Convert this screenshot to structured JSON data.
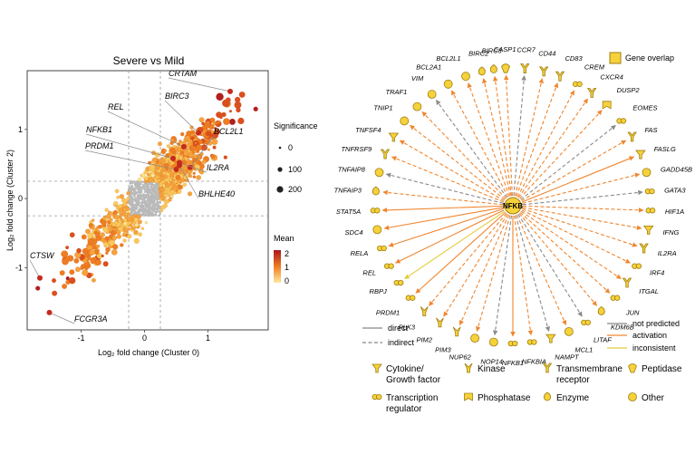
{
  "chart_data": [
    {
      "type": "scatter",
      "title": "Severe vs Mild",
      "xlabel": "Log₂ fold change (Cluster 0)",
      "ylabel": "Log₂ fold change (Cluster 2)",
      "xlim": [
        -1.85,
        1.95
      ],
      "ylim": [
        -1.9,
        1.85
      ],
      "xticks": [
        -1,
        0,
        1
      ],
      "yticks": [
        -1,
        0,
        1
      ],
      "threshold_lines_x": [
        -0.25,
        0.25
      ],
      "threshold_lines_y": [
        -0.25,
        0.25
      ],
      "grid": false,
      "size_legend": {
        "title": "Significance",
        "values": [
          0,
          100,
          200
        ]
      },
      "color_legend": {
        "title": "Mean",
        "ticks": [
          2,
          1,
          0
        ],
        "colors": [
          "#b11f1f",
          "#f08a24",
          "#ffe38a"
        ]
      },
      "labeled_points": [
        {
          "label": "CRTAM",
          "x": 1.35,
          "y": 1.55
        },
        {
          "label": "REL",
          "x": 0.62,
          "y": 0.75
        },
        {
          "label": "BIRC3",
          "x": 0.85,
          "y": 0.95
        },
        {
          "label": "NFKB1",
          "x": 0.45,
          "y": 0.58
        },
        {
          "label": "BCL2L1",
          "x": 0.72,
          "y": 0.45
        },
        {
          "label": "PRDM1",
          "x": 0.5,
          "y": 0.42
        },
        {
          "label": "IL2RA",
          "x": 0.55,
          "y": 0.52
        },
        {
          "label": "BHLHE40",
          "x": 0.55,
          "y": 0.48
        },
        {
          "label": "CTSW",
          "x": -1.65,
          "y": -1.15
        },
        {
          "label": "FCGR3A",
          "x": -1.5,
          "y": -1.65
        }
      ]
    },
    {
      "type": "network",
      "hub": "NFKB",
      "legend_gene_overlap": "Gene overlap",
      "line_legend": [
        {
          "label": "direct",
          "style": "solid",
          "color": "#888888"
        },
        {
          "label": "indirect",
          "style": "dashed",
          "color": "#888888"
        },
        {
          "label": "not predicted",
          "style": "solid",
          "color": "#888888"
        },
        {
          "label": "activation",
          "style": "solid",
          "color": "#f0852d"
        },
        {
          "label": "inconsistent",
          "style": "solid",
          "color": "#e3cc3a"
        }
      ],
      "shape_legend": [
        {
          "label": "Cytokine/\nGrowth factor",
          "shape": "cytokine"
        },
        {
          "label": "Kinase",
          "shape": "kinase"
        },
        {
          "label": "Transmembrane\nreceptor",
          "shape": "receptor"
        },
        {
          "label": "Peptidase",
          "shape": "peptidase"
        },
        {
          "label": "Transcription\nregulator",
          "shape": "tr"
        },
        {
          "label": "Phosphatase",
          "shape": "phosphatase"
        },
        {
          "label": "Enzyme",
          "shape": "enzyme"
        },
        {
          "label": "Other",
          "shape": "other"
        }
      ],
      "nodes": [
        {
          "label": "CASP1",
          "angle": 93,
          "shape": "peptidase",
          "edge": "activation",
          "dashed": true
        },
        {
          "label": "CCR7",
          "angle": 85,
          "shape": "receptor",
          "edge": "not predicted",
          "dashed": true
        },
        {
          "label": "CD44",
          "angle": 77,
          "shape": "receptor",
          "edge": "activation",
          "dashed": true
        },
        {
          "label": "CD83",
          "angle": 70,
          "shape": "receptor",
          "edge": "activation",
          "dashed": true
        },
        {
          "label": "CREM",
          "angle": 62,
          "shape": "tr",
          "edge": "activation",
          "dashed": true
        },
        {
          "label": "CXCR4",
          "angle": 55,
          "shape": "receptor",
          "edge": "activation",
          "dashed": true
        },
        {
          "label": "DUSP2",
          "angle": 47,
          "shape": "phosphatase",
          "edge": "activation",
          "dashed": true
        },
        {
          "label": "EOMES",
          "angle": 38,
          "shape": "tr",
          "edge": "not predicted",
          "dashed": true
        },
        {
          "label": "FAS",
          "angle": 30,
          "shape": "receptor",
          "edge": "activation",
          "dashed": true
        },
        {
          "label": "FASLG",
          "angle": 22,
          "shape": "cytokine",
          "edge": "activation",
          "dashed": false
        },
        {
          "label": "GADD45B",
          "angle": 14,
          "shape": "other",
          "edge": "activation",
          "dashed": true
        },
        {
          "label": "GATA3",
          "angle": 6,
          "shape": "tr",
          "edge": "not predicted",
          "dashed": true
        },
        {
          "label": "HIF1A",
          "angle": -2,
          "shape": "tr",
          "edge": "activation",
          "dashed": true
        },
        {
          "label": "IFNG",
          "angle": -10,
          "shape": "cytokine",
          "edge": "activation",
          "dashed": true
        },
        {
          "label": "IL2RA",
          "angle": -18,
          "shape": "receptor",
          "edge": "activation",
          "dashed": true
        },
        {
          "label": "IRF4",
          "angle": -26,
          "shape": "tr",
          "edge": "activation",
          "dashed": true
        },
        {
          "label": "ITGAL",
          "angle": -34,
          "shape": "receptor",
          "edge": "activation",
          "dashed": true
        },
        {
          "label": "JUN",
          "angle": -42,
          "shape": "tr",
          "edge": "activation",
          "dashed": true
        },
        {
          "label": "KDM6B",
          "angle": -50,
          "shape": "enzyme",
          "edge": "activation",
          "dashed": true
        },
        {
          "label": "LITAF",
          "angle": -58,
          "shape": "tr",
          "edge": "not predicted",
          "dashed": true
        },
        {
          "label": "MCL1",
          "angle": -66,
          "shape": "other",
          "edge": "activation",
          "dashed": true
        },
        {
          "label": "NAMPT",
          "angle": -74,
          "shape": "cytokine",
          "edge": "not predicted",
          "dashed": true
        },
        {
          "label": "NFKBIA",
          "angle": -82,
          "shape": "tr",
          "edge": "activation",
          "dashed": true
        },
        {
          "label": "NFKB1",
          "angle": -90,
          "shape": "tr",
          "edge": "activation",
          "dashed": false
        },
        {
          "label": "NOP14",
          "angle": -98,
          "shape": "other",
          "edge": "not predicted",
          "dashed": true
        },
        {
          "label": "NUP62",
          "angle": -106,
          "shape": "other",
          "edge": "activation",
          "dashed": true
        },
        {
          "label": "PIM3",
          "angle": -114,
          "shape": "kinase",
          "edge": "activation",
          "dashed": true
        },
        {
          "label": "PIM2",
          "angle": -122,
          "shape": "kinase",
          "edge": "activation",
          "dashed": true
        },
        {
          "label": "PLK3",
          "angle": -130,
          "shape": "kinase",
          "edge": "activation",
          "dashed": true
        },
        {
          "label": "PRDM1",
          "angle": -138,
          "shape": "tr",
          "edge": "activation",
          "dashed": false
        },
        {
          "label": "RBPJ",
          "angle": -146,
          "shape": "tr",
          "edge": "inconsistent",
          "dashed": false
        },
        {
          "label": "REL",
          "angle": -154,
          "shape": "tr",
          "edge": "activation",
          "dashed": false
        },
        {
          "label": "RELA",
          "angle": -162,
          "shape": "tr",
          "edge": "activation",
          "dashed": false
        },
        {
          "label": "SDC4",
          "angle": -170,
          "shape": "other",
          "edge": "activation",
          "dashed": false
        },
        {
          "label": "STAT5A",
          "angle": -178,
          "shape": "tr",
          "edge": "activation",
          "dashed": false
        },
        {
          "label": "TNFAIP3",
          "angle": 174,
          "shape": "enzyme",
          "edge": "activation",
          "dashed": true
        },
        {
          "label": "TNFAIP8",
          "angle": 166,
          "shape": "other",
          "edge": "not predicted",
          "dashed": true
        },
        {
          "label": "TNFRSF9",
          "angle": 158,
          "shape": "receptor",
          "edge": "activation",
          "dashed": true
        },
        {
          "label": "TNFSF4",
          "angle": 150,
          "shape": "cytokine",
          "edge": "activation",
          "dashed": true
        },
        {
          "label": "TNIP1",
          "angle": 142,
          "shape": "other",
          "edge": "activation",
          "dashed": true
        },
        {
          "label": "TRAF1",
          "angle": 134,
          "shape": "other",
          "edge": "activation",
          "dashed": true
        },
        {
          "label": "VIM",
          "angle": 126,
          "shape": "other",
          "edge": "not predicted",
          "dashed": true
        },
        {
          "label": "BCL2A1",
          "angle": 118,
          "shape": "other",
          "edge": "activation",
          "dashed": true
        },
        {
          "label": "BCL2L1",
          "angle": 110,
          "shape": "other",
          "edge": "activation",
          "dashed": true
        },
        {
          "label": "BIRC2",
          "angle": 103,
          "shape": "enzyme",
          "edge": "activation",
          "dashed": true
        },
        {
          "label": "BIRC3",
          "angle": 98,
          "shape": "enzyme",
          "edge": "activation",
          "dashed": true
        }
      ]
    }
  ]
}
